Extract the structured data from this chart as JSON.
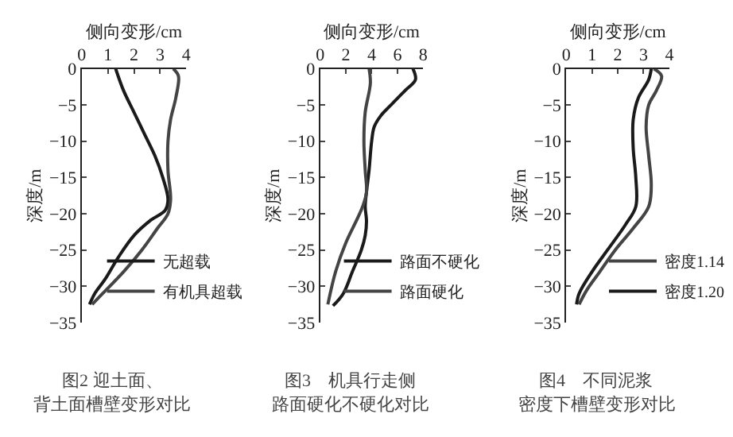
{
  "chart_data": [
    {
      "type": "line",
      "xlabel": "侧向变形/cm",
      "ylabel": "深度/m",
      "xlim": [
        0,
        4
      ],
      "xticks": [
        0,
        1,
        2,
        3,
        4
      ],
      "ylim": [
        -35,
        0
      ],
      "yticks": [
        -35,
        -30,
        -25,
        -20,
        -15,
        -10,
        -5,
        0
      ],
      "legend": "bottom right",
      "annotations": [
        "图2 迎土面、",
        "背土面槽壁变形对比"
      ],
      "series": [
        {
          "name": "无超载",
          "color": "#1a1a1a",
          "x": [
            1.3,
            1.6,
            2.0,
            2.4,
            2.8,
            3.1,
            3.3,
            3.2,
            2.6,
            2.0,
            1.4,
            0.9,
            0.5,
            0.3
          ],
          "values": [
            0,
            -3,
            -6,
            -9,
            -12,
            -15,
            -18,
            -19.5,
            -21,
            -23,
            -26,
            -29,
            -31,
            -32.5
          ]
        },
        {
          "name": "有机具超载",
          "color": "#444444",
          "x": [
            3.5,
            3.7,
            3.6,
            3.4,
            3.3,
            3.3,
            3.4,
            3.3,
            2.9,
            2.3,
            1.6,
            0.8,
            0.4
          ],
          "values": [
            0,
            -1,
            -4,
            -7,
            -10,
            -14,
            -18,
            -20,
            -22,
            -25,
            -28,
            -31,
            -32.5
          ]
        }
      ]
    },
    {
      "type": "line",
      "xlabel": "侧向变形/cm",
      "ylabel": "深度/m",
      "xlim": [
        0,
        8
      ],
      "xticks": [
        0,
        2,
        4,
        6,
        8
      ],
      "ylim": [
        -35,
        0
      ],
      "yticks": [
        -35,
        -30,
        -25,
        -20,
        -15,
        -10,
        -5,
        0
      ],
      "legend": "bottom right",
      "annotations": [
        "图3　机具行走侧",
        "路面硬化不硬化对比"
      ],
      "series": [
        {
          "name": "路面不硬化",
          "color": "#1a1a1a",
          "x": [
            7.2,
            7.4,
            6.6,
            5.5,
            4.7,
            4.2,
            4.0,
            3.8,
            3.6,
            3.5,
            3.6,
            3.5,
            3.2,
            2.5,
            1.8,
            1.0
          ],
          "values": [
            0,
            -1.5,
            -3,
            -5,
            -6.5,
            -8,
            -10,
            -14,
            -17,
            -19,
            -21,
            -23,
            -25,
            -28,
            -31,
            -32.7
          ]
        },
        {
          "name": "路面硬化",
          "color": "#444444",
          "x": [
            3.8,
            3.9,
            3.5,
            3.4,
            3.5,
            3.6,
            3.3,
            2.8,
            2.0,
            1.2,
            0.6
          ],
          "values": [
            0,
            -2,
            -6,
            -10,
            -14,
            -17,
            -19,
            -21,
            -24,
            -28,
            -32.5
          ]
        }
      ]
    },
    {
      "type": "line",
      "xlabel": "侧向变形/cm",
      "ylabel": "深度/m",
      "xlim": [
        0,
        4
      ],
      "xticks": [
        0,
        1,
        2,
        3,
        4
      ],
      "ylim": [
        -35,
        0
      ],
      "yticks": [
        -35,
        -30,
        -25,
        -20,
        -15,
        -10,
        -5,
        0
      ],
      "legend": "bottom right",
      "annotations": [
        "图4　不同泥浆",
        "密度下槽壁变形对比"
      ],
      "series": [
        {
          "name": "密度1.14",
          "color": "#444444",
          "x": [
            3.4,
            3.7,
            3.5,
            3.2,
            3.1,
            3.2,
            3.3,
            3.2,
            2.6,
            1.9,
            1.3,
            0.8,
            0.5
          ],
          "values": [
            0,
            -1,
            -3,
            -5,
            -8,
            -12,
            -16,
            -19,
            -22,
            -25,
            -28,
            -30.5,
            -32.5
          ]
        },
        {
          "name": "密度1.20",
          "color": "#1a1a1a",
          "x": [
            3.3,
            3.2,
            2.8,
            2.6,
            2.6,
            2.7,
            2.7,
            2.3,
            1.6,
            1.0,
            0.5,
            0.4
          ],
          "values": [
            0,
            -1.5,
            -4,
            -7,
            -11,
            -15,
            -19,
            -21.5,
            -25,
            -28,
            -31,
            -32.5
          ]
        }
      ]
    }
  ]
}
